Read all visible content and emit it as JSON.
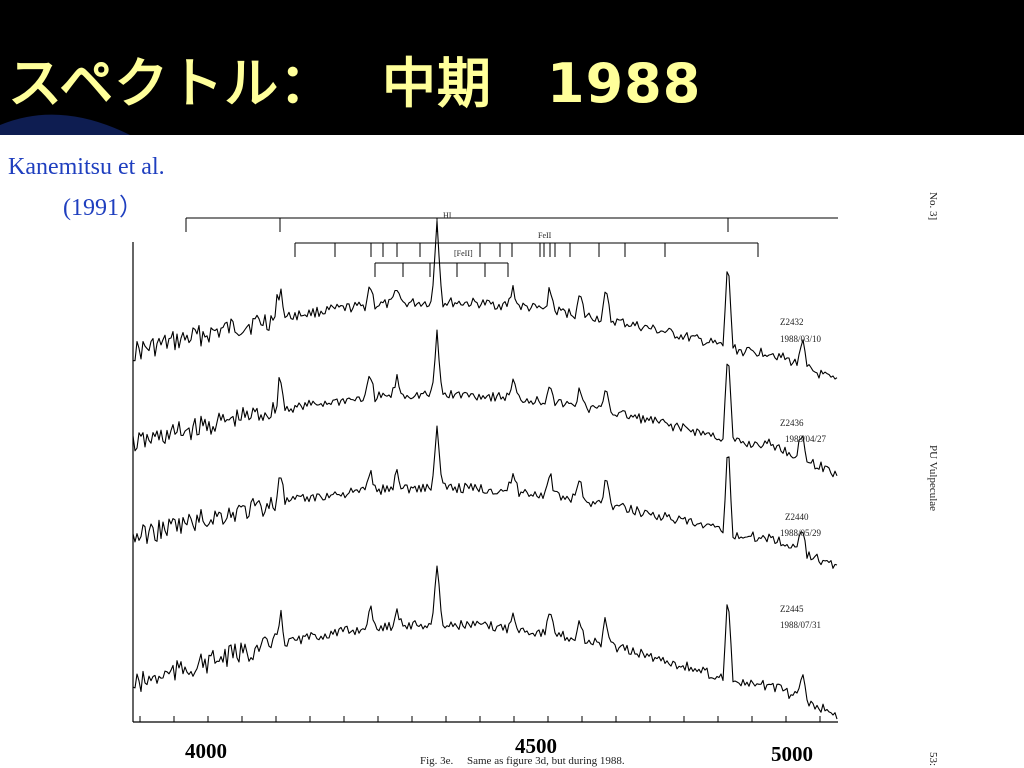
{
  "slide": {
    "title": "スペクトル：　 中期　1988"
  },
  "citation": {
    "authors": "Kanemitsu et al.",
    "year": "(1991）"
  },
  "figure": {
    "line_markers": {
      "hi": "HI",
      "feii": "FeII",
      "forbidden_feii": "[FeII]"
    },
    "spectra": [
      {
        "id": "Z2432",
        "date": "1988/03/10"
      },
      {
        "id": "Z2436",
        "date": "1988/04/27"
      },
      {
        "id": "Z2440",
        "date": "1988/05/29"
      },
      {
        "id": "Z2445",
        "date": "1988/07/31"
      }
    ],
    "page_header": "No. 3]",
    "running_title": "PU Vulpeculae",
    "caption_label": "Fig. 3e.",
    "caption_text": "Same as figure 3d, but during 1988.",
    "page_number": "53:",
    "axis_labels": [
      "4000",
      "4500",
      "5000"
    ]
  }
}
